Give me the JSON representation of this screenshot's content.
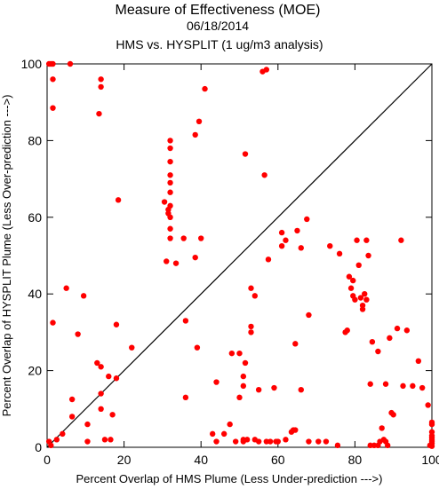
{
  "chart_data": {
    "type": "scatter",
    "title": "Measure of Effectiveness (MOE)",
    "subtitle": "06/18/2014",
    "subtitle2": "HMS vs. HYSPLIT  (1 ug/m3 analysis)",
    "xlabel": "Percent Overlap of HMS Plume (Less Under-prediction --->)",
    "ylabel": "Percent Overlap of HYSPLIT Plume (Less Over-prediction --->)",
    "xlim": [
      0,
      100
    ],
    "ylim": [
      0,
      100
    ],
    "xticks": [
      0,
      20,
      40,
      60,
      80,
      100
    ],
    "yticks": [
      0,
      20,
      40,
      60,
      80,
      100
    ],
    "grid": false,
    "diagonal": true,
    "point_color": "#ff0000",
    "points": [
      [
        0.5,
        100
      ],
      [
        1,
        100
      ],
      [
        1.5,
        100
      ],
      [
        6,
        100
      ],
      [
        1.5,
        96
      ],
      [
        1.5,
        88.5
      ],
      [
        14,
        96
      ],
      [
        14,
        94
      ],
      [
        13.5,
        87
      ],
      [
        1.5,
        32.5
      ],
      [
        5,
        41.5
      ],
      [
        9.5,
        39.5
      ],
      [
        8,
        29.5
      ],
      [
        6.5,
        12.5
      ],
      [
        6.5,
        8
      ],
      [
        10.5,
        6
      ],
      [
        10.5,
        1.5
      ],
      [
        4,
        3.5
      ],
      [
        2.5,
        2
      ],
      [
        0.5,
        1.5
      ],
      [
        1,
        0.5
      ],
      [
        13,
        22
      ],
      [
        14,
        21
      ],
      [
        14,
        14
      ],
      [
        16,
        18.5
      ],
      [
        18,
        18
      ],
      [
        18,
        32
      ],
      [
        17,
        8.5
      ],
      [
        14,
        10
      ],
      [
        15,
        2
      ],
      [
        16.5,
        2
      ],
      [
        22,
        26
      ],
      [
        18.5,
        64.5
      ],
      [
        30.5,
        64
      ],
      [
        31.5,
        62
      ],
      [
        31.5,
        61
      ],
      [
        32,
        80
      ],
      [
        32,
        78
      ],
      [
        32,
        74.5
      ],
      [
        32,
        71
      ],
      [
        32,
        69
      ],
      [
        32,
        66.5
      ],
      [
        32,
        63
      ],
      [
        32,
        60
      ],
      [
        32,
        57
      ],
      [
        32,
        54.5
      ],
      [
        31,
        48.5
      ],
      [
        33.5,
        48
      ],
      [
        35.5,
        54.5
      ],
      [
        38.5,
        49.5
      ],
      [
        40,
        54.5
      ],
      [
        41,
        93.5
      ],
      [
        39.5,
        85
      ],
      [
        38.5,
        81.5
      ],
      [
        36,
        33
      ],
      [
        36,
        13
      ],
      [
        39,
        26
      ],
      [
        43,
        3.5
      ],
      [
        44,
        17
      ],
      [
        44,
        1.5
      ],
      [
        46,
        3.5
      ],
      [
        47.5,
        6
      ],
      [
        48,
        24.5
      ],
      [
        49,
        1.5
      ],
      [
        50,
        13
      ],
      [
        50,
        24.5
      ],
      [
        51,
        2
      ],
      [
        51,
        16
      ],
      [
        51,
        18.5
      ],
      [
        51.5,
        76.5
      ],
      [
        51.5,
        22
      ],
      [
        51,
        1.5
      ],
      [
        52,
        2
      ],
      [
        53,
        30
      ],
      [
        53,
        31.5
      ],
      [
        53,
        41.5
      ],
      [
        54,
        39.5
      ],
      [
        54,
        2
      ],
      [
        55,
        15
      ],
      [
        55,
        1.5
      ],
      [
        56,
        98
      ],
      [
        57,
        98.5
      ],
      [
        56.5,
        71
      ],
      [
        57.5,
        49
      ],
      [
        57,
        1.5
      ],
      [
        58,
        1.5
      ],
      [
        59,
        15.5
      ],
      [
        59.5,
        1.5
      ],
      [
        60,
        1.5
      ],
      [
        61,
        52.5
      ],
      [
        61,
        56
      ],
      [
        62,
        54
      ],
      [
        62,
        2
      ],
      [
        63.5,
        4
      ],
      [
        64,
        4.5
      ],
      [
        64.5,
        4.5
      ],
      [
        64.5,
        27
      ],
      [
        65,
        56.5
      ],
      [
        66,
        52
      ],
      [
        66,
        15
      ],
      [
        67.5,
        59.5
      ],
      [
        68,
        34.5
      ],
      [
        68,
        1.5
      ],
      [
        70.5,
        1.5
      ],
      [
        72.5,
        1.5
      ],
      [
        73.5,
        52.5
      ],
      [
        75.5,
        0.5
      ],
      [
        76,
        50.5
      ],
      [
        77.5,
        30
      ],
      [
        78,
        30.5
      ],
      [
        78.5,
        44.5
      ],
      [
        79,
        41.5
      ],
      [
        79.5,
        43.5
      ],
      [
        79.5,
        39.5
      ],
      [
        80,
        38.5
      ],
      [
        80.5,
        54
      ],
      [
        81,
        47.5
      ],
      [
        81.5,
        39
      ],
      [
        82,
        37
      ],
      [
        82,
        36
      ],
      [
        82.5,
        40
      ],
      [
        83,
        38.5
      ],
      [
        83,
        54
      ],
      [
        83.5,
        50
      ],
      [
        84,
        16.5
      ],
      [
        84.5,
        27.5
      ],
      [
        84,
        0.5
      ],
      [
        85,
        0.5
      ],
      [
        86,
        25
      ],
      [
        86,
        0.5
      ],
      [
        86.5,
        1.5
      ],
      [
        87,
        5
      ],
      [
        87.5,
        2
      ],
      [
        88,
        16.5
      ],
      [
        88,
        1.5
      ],
      [
        88.5,
        0.5
      ],
      [
        89,
        28.5
      ],
      [
        89.5,
        9
      ],
      [
        90,
        8.5
      ],
      [
        91,
        31
      ],
      [
        92,
        54
      ],
      [
        92.5,
        16
      ],
      [
        93.5,
        30.5
      ],
      [
        95,
        16
      ],
      [
        96.5,
        22.5
      ],
      [
        97.5,
        15.5
      ],
      [
        99,
        11
      ],
      [
        99.5,
        0.5
      ],
      [
        100,
        1
      ],
      [
        100,
        1.5
      ],
      [
        100,
        2
      ],
      [
        100,
        2.5
      ],
      [
        100,
        3
      ],
      [
        100,
        4
      ],
      [
        100,
        6
      ],
      [
        100,
        6.5
      ],
      [
        100,
        0.3
      ]
    ]
  }
}
